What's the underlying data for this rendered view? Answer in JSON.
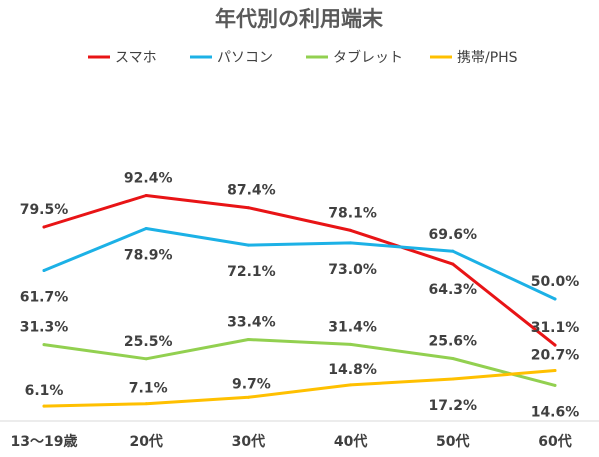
{
  "chart_data": {
    "type": "line",
    "title": "年代別の利用端末",
    "categories": [
      "13～19歳",
      "20代",
      "30代",
      "40代",
      "50代",
      "60代"
    ],
    "unit": "%",
    "ylim": [
      0,
      100
    ],
    "grid": false,
    "legend_position": "top",
    "series": [
      {
        "name": "スマホ",
        "color": "#e81416",
        "values": [
          79.5,
          92.4,
          87.4,
          78.1,
          64.3,
          31.1
        ],
        "labels": [
          "79.5%",
          "92.4%",
          "87.4%",
          "78.1%",
          "64.3%",
          "31.1%"
        ]
      },
      {
        "name": "パソコン",
        "color": "#1cb1e6",
        "values": [
          61.7,
          78.9,
          72.1,
          73.0,
          69.6,
          50.0
        ],
        "labels": [
          "61.7%",
          "78.9%",
          "72.1%",
          "73.0%",
          "69.6%",
          "50.0%"
        ]
      },
      {
        "name": "タブレット",
        "color": "#92d050",
        "values": [
          31.3,
          25.5,
          33.4,
          31.4,
          25.6,
          14.6
        ],
        "labels": [
          "31.3%",
          "25.5%",
          "33.4%",
          "31.4%",
          "25.6%",
          "14.6%"
        ]
      },
      {
        "name": "携帯/PHS",
        "color": "#ffc000",
        "values": [
          6.1,
          7.1,
          9.7,
          14.8,
          17.2,
          20.7
        ],
        "labels": [
          "6.1%",
          "7.1%",
          "9.7%",
          "14.8%",
          "17.2%",
          "20.7%"
        ]
      }
    ]
  }
}
